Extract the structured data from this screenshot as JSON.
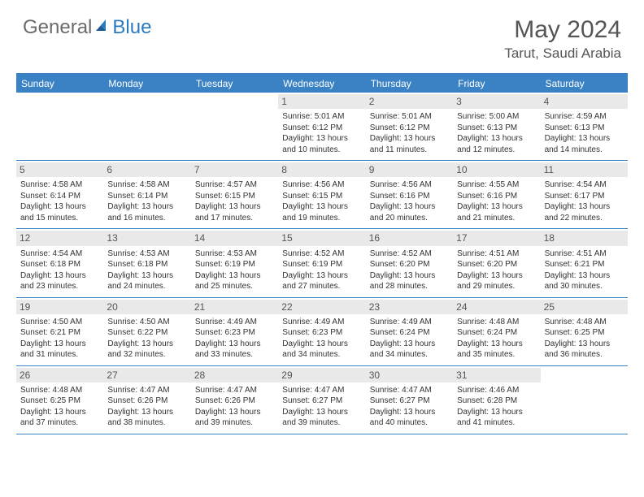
{
  "logo": {
    "left": "General",
    "right": "Blue"
  },
  "title": "May 2024",
  "location": "Tarut, Saudi Arabia",
  "colors": {
    "header_bar": "#3b82c4",
    "header_text": "#ffffff",
    "daynum_bg": "#e9e9e9",
    "text": "#333333",
    "title_text": "#555555",
    "logo_gray": "#6b6b6b",
    "logo_blue": "#2b7bbf",
    "background": "#ffffff"
  },
  "fonts": {
    "title_size_pt": 22,
    "location_size_pt": 13,
    "weekday_size_pt": 9,
    "daynum_size_pt": 9,
    "body_size_pt": 7.5
  },
  "layout": {
    "columns": 7,
    "rows": 5,
    "first_day_column_index": 3
  },
  "weekdays": [
    "Sunday",
    "Monday",
    "Tuesday",
    "Wednesday",
    "Thursday",
    "Friday",
    "Saturday"
  ],
  "weeks": [
    [
      {
        "day": "",
        "lines": []
      },
      {
        "day": "",
        "lines": []
      },
      {
        "day": "",
        "lines": []
      },
      {
        "day": "1",
        "lines": [
          "Sunrise: 5:01 AM",
          "Sunset: 6:12 PM",
          "Daylight: 13 hours",
          "and 10 minutes."
        ]
      },
      {
        "day": "2",
        "lines": [
          "Sunrise: 5:01 AM",
          "Sunset: 6:12 PM",
          "Daylight: 13 hours",
          "and 11 minutes."
        ]
      },
      {
        "day": "3",
        "lines": [
          "Sunrise: 5:00 AM",
          "Sunset: 6:13 PM",
          "Daylight: 13 hours",
          "and 12 minutes."
        ]
      },
      {
        "day": "4",
        "lines": [
          "Sunrise: 4:59 AM",
          "Sunset: 6:13 PM",
          "Daylight: 13 hours",
          "and 14 minutes."
        ]
      }
    ],
    [
      {
        "day": "5",
        "lines": [
          "Sunrise: 4:58 AM",
          "Sunset: 6:14 PM",
          "Daylight: 13 hours",
          "and 15 minutes."
        ]
      },
      {
        "day": "6",
        "lines": [
          "Sunrise: 4:58 AM",
          "Sunset: 6:14 PM",
          "Daylight: 13 hours",
          "and 16 minutes."
        ]
      },
      {
        "day": "7",
        "lines": [
          "Sunrise: 4:57 AM",
          "Sunset: 6:15 PM",
          "Daylight: 13 hours",
          "and 17 minutes."
        ]
      },
      {
        "day": "8",
        "lines": [
          "Sunrise: 4:56 AM",
          "Sunset: 6:15 PM",
          "Daylight: 13 hours",
          "and 19 minutes."
        ]
      },
      {
        "day": "9",
        "lines": [
          "Sunrise: 4:56 AM",
          "Sunset: 6:16 PM",
          "Daylight: 13 hours",
          "and 20 minutes."
        ]
      },
      {
        "day": "10",
        "lines": [
          "Sunrise: 4:55 AM",
          "Sunset: 6:16 PM",
          "Daylight: 13 hours",
          "and 21 minutes."
        ]
      },
      {
        "day": "11",
        "lines": [
          "Sunrise: 4:54 AM",
          "Sunset: 6:17 PM",
          "Daylight: 13 hours",
          "and 22 minutes."
        ]
      }
    ],
    [
      {
        "day": "12",
        "lines": [
          "Sunrise: 4:54 AM",
          "Sunset: 6:18 PM",
          "Daylight: 13 hours",
          "and 23 minutes."
        ]
      },
      {
        "day": "13",
        "lines": [
          "Sunrise: 4:53 AM",
          "Sunset: 6:18 PM",
          "Daylight: 13 hours",
          "and 24 minutes."
        ]
      },
      {
        "day": "14",
        "lines": [
          "Sunrise: 4:53 AM",
          "Sunset: 6:19 PM",
          "Daylight: 13 hours",
          "and 25 minutes."
        ]
      },
      {
        "day": "15",
        "lines": [
          "Sunrise: 4:52 AM",
          "Sunset: 6:19 PM",
          "Daylight: 13 hours",
          "and 27 minutes."
        ]
      },
      {
        "day": "16",
        "lines": [
          "Sunrise: 4:52 AM",
          "Sunset: 6:20 PM",
          "Daylight: 13 hours",
          "and 28 minutes."
        ]
      },
      {
        "day": "17",
        "lines": [
          "Sunrise: 4:51 AM",
          "Sunset: 6:20 PM",
          "Daylight: 13 hours",
          "and 29 minutes."
        ]
      },
      {
        "day": "18",
        "lines": [
          "Sunrise: 4:51 AM",
          "Sunset: 6:21 PM",
          "Daylight: 13 hours",
          "and 30 minutes."
        ]
      }
    ],
    [
      {
        "day": "19",
        "lines": [
          "Sunrise: 4:50 AM",
          "Sunset: 6:21 PM",
          "Daylight: 13 hours",
          "and 31 minutes."
        ]
      },
      {
        "day": "20",
        "lines": [
          "Sunrise: 4:50 AM",
          "Sunset: 6:22 PM",
          "Daylight: 13 hours",
          "and 32 minutes."
        ]
      },
      {
        "day": "21",
        "lines": [
          "Sunrise: 4:49 AM",
          "Sunset: 6:23 PM",
          "Daylight: 13 hours",
          "and 33 minutes."
        ]
      },
      {
        "day": "22",
        "lines": [
          "Sunrise: 4:49 AM",
          "Sunset: 6:23 PM",
          "Daylight: 13 hours",
          "and 34 minutes."
        ]
      },
      {
        "day": "23",
        "lines": [
          "Sunrise: 4:49 AM",
          "Sunset: 6:24 PM",
          "Daylight: 13 hours",
          "and 34 minutes."
        ]
      },
      {
        "day": "24",
        "lines": [
          "Sunrise: 4:48 AM",
          "Sunset: 6:24 PM",
          "Daylight: 13 hours",
          "and 35 minutes."
        ]
      },
      {
        "day": "25",
        "lines": [
          "Sunrise: 4:48 AM",
          "Sunset: 6:25 PM",
          "Daylight: 13 hours",
          "and 36 minutes."
        ]
      }
    ],
    [
      {
        "day": "26",
        "lines": [
          "Sunrise: 4:48 AM",
          "Sunset: 6:25 PM",
          "Daylight: 13 hours",
          "and 37 minutes."
        ]
      },
      {
        "day": "27",
        "lines": [
          "Sunrise: 4:47 AM",
          "Sunset: 6:26 PM",
          "Daylight: 13 hours",
          "and 38 minutes."
        ]
      },
      {
        "day": "28",
        "lines": [
          "Sunrise: 4:47 AM",
          "Sunset: 6:26 PM",
          "Daylight: 13 hours",
          "and 39 minutes."
        ]
      },
      {
        "day": "29",
        "lines": [
          "Sunrise: 4:47 AM",
          "Sunset: 6:27 PM",
          "Daylight: 13 hours",
          "and 39 minutes."
        ]
      },
      {
        "day": "30",
        "lines": [
          "Sunrise: 4:47 AM",
          "Sunset: 6:27 PM",
          "Daylight: 13 hours",
          "and 40 minutes."
        ]
      },
      {
        "day": "31",
        "lines": [
          "Sunrise: 4:46 AM",
          "Sunset: 6:28 PM",
          "Daylight: 13 hours",
          "and 41 minutes."
        ]
      },
      {
        "day": "",
        "lines": []
      }
    ]
  ]
}
